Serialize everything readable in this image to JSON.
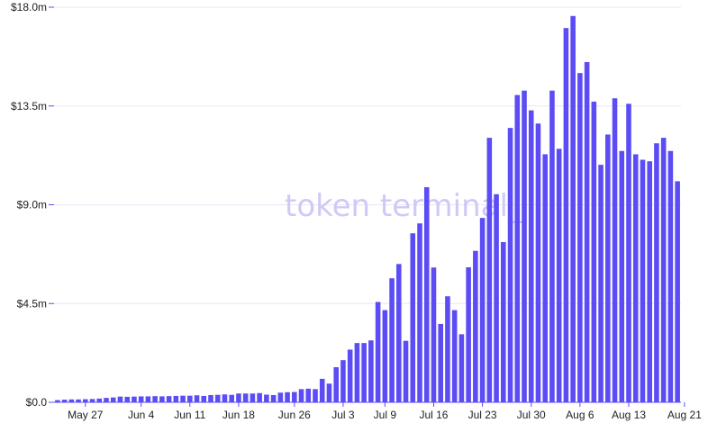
{
  "watermark": "token terminal_",
  "chart_data": {
    "type": "bar",
    "ylim": [
      0,
      18
    ],
    "y_unit": "$m",
    "y_ticks": [
      {
        "value": 0,
        "label": "$0.0"
      },
      {
        "value": 4.5,
        "label": "$4.5m"
      },
      {
        "value": 9,
        "label": "$9.0m"
      },
      {
        "value": 13.5,
        "label": "$13.5m"
      },
      {
        "value": 18,
        "label": "$18.0m"
      }
    ],
    "x_ticks": [
      {
        "index": 4,
        "label": "May 27"
      },
      {
        "index": 12,
        "label": "Jun 4"
      },
      {
        "index": 19,
        "label": "Jun 11"
      },
      {
        "index": 26,
        "label": "Jun 18"
      },
      {
        "index": 34,
        "label": "Jun 26"
      },
      {
        "index": 41,
        "label": "Jul 3"
      },
      {
        "index": 47,
        "label": "Jul 9"
      },
      {
        "index": 54,
        "label": "Jul 16"
      },
      {
        "index": 61,
        "label": "Jul 23"
      },
      {
        "index": 68,
        "label": "Jul 30"
      },
      {
        "index": 75,
        "label": "Aug 6"
      },
      {
        "index": 82,
        "label": "Aug 13"
      },
      {
        "index": 90,
        "label": "Aug 21"
      }
    ],
    "values": [
      0.1,
      0.12,
      0.13,
      0.13,
      0.14,
      0.15,
      0.17,
      0.2,
      0.22,
      0.26,
      0.25,
      0.26,
      0.27,
      0.27,
      0.28,
      0.27,
      0.28,
      0.29,
      0.3,
      0.3,
      0.32,
      0.29,
      0.33,
      0.34,
      0.36,
      0.34,
      0.4,
      0.4,
      0.4,
      0.42,
      0.35,
      0.33,
      0.44,
      0.46,
      0.47,
      0.6,
      0.62,
      0.6,
      1.07,
      0.85,
      1.6,
      1.92,
      2.4,
      2.7,
      2.7,
      2.82,
      4.57,
      4.2,
      5.65,
      6.3,
      2.8,
      7.7,
      8.15,
      9.8,
      6.14,
      3.57,
      4.83,
      4.2,
      3.1,
      6.15,
      6.9,
      8.4,
      12.05,
      9.48,
      7.3,
      12.5,
      14.0,
      14.2,
      13.3,
      12.7,
      11.3,
      14.2,
      11.55,
      17.05,
      17.6,
      15.0,
      15.5,
      13.7,
      10.82,
      12.2,
      13.85,
      11.45,
      13.6,
      11.3,
      11.05,
      10.98,
      11.8,
      12.05,
      11.45,
      10.07
    ]
  }
}
